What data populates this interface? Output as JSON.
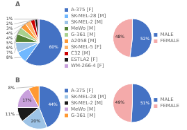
{
  "chart_data": [
    {
      "type": "pie",
      "title": "A",
      "categories": [
        "A-375 [F]",
        "SK-MEL-28 [M]",
        "SK-MEL-2 [M]",
        "MeWo [M]",
        "G-361 [M]",
        "A2058 [M]",
        "SK-MEL-5 [F]",
        "C32 [M]",
        "ESTLA2 [F]",
        "WM-266-4 [F]"
      ],
      "values": [
        60,
        8,
        7,
        6,
        5,
        4,
        4,
        3,
        2,
        1
      ],
      "value_labels": [
        "60%",
        "8%",
        "7%",
        "6%",
        "5%",
        "4%",
        "4%",
        "3%",
        "2%",
        "1%"
      ],
      "colors": [
        "#4472C4",
        "#70B8FF",
        "#9DC3E6",
        "#548235",
        "#A9D18E",
        "#FF9933",
        "#FFB366",
        "#CC0000",
        "#1A1A1A",
        "#C8A0DC"
      ],
      "legend": "right",
      "data_labels": true
    },
    {
      "type": "pie",
      "categories": [
        "MALE",
        "FEMALE"
      ],
      "values": [
        52,
        48
      ],
      "value_labels": [
        "52%",
        "48%"
      ],
      "colors": [
        "#4472C4",
        "#F4AAAA"
      ],
      "legend": "right",
      "data_labels": true
    },
    {
      "type": "pie",
      "title": "B",
      "categories": [
        "A-375 [F]",
        "SK-MEL-28 [M]",
        "SK-MEL-2 [M]",
        "MeWo [M]",
        "G-361 [M]"
      ],
      "values": [
        44,
        20,
        11,
        17,
        8
      ],
      "value_labels": [
        "44%",
        "20%",
        "11%",
        "17%",
        "8%"
      ],
      "colors": [
        "#4472C4",
        "#9DC3E6",
        "#1A1A1A",
        "#C8A0DC",
        "#FF9933"
      ],
      "legend": "right",
      "data_labels": true
    },
    {
      "type": "pie",
      "categories": [
        "MALE",
        "FEMALE"
      ],
      "values": [
        51,
        49
      ],
      "value_labels": [
        "51%",
        "49%"
      ],
      "colors": [
        "#4472C4",
        "#F4AAAA"
      ],
      "legend": "right",
      "data_labels": true
    }
  ]
}
